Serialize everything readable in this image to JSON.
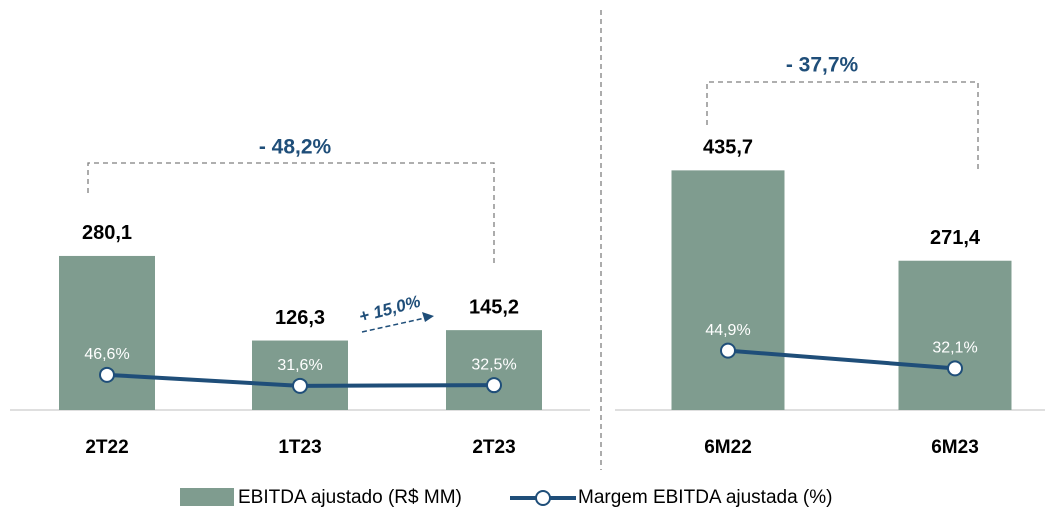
{
  "chart_data": [
    {
      "type": "bar",
      "categories": [
        "2T22",
        "1T23",
        "2T23"
      ],
      "series": [
        {
          "name": "EBITDA ajustado (R$ MM)",
          "color": "#7f9c8f",
          "values": [
            280.1,
            126.3,
            145.2
          ],
          "value_labels": [
            "280,1",
            "126,3",
            "145,2"
          ]
        },
        {
          "name": "Margem EBITDA ajustada (%)",
          "color": "#1f4e79",
          "axis": "y2",
          "values": [
            46.6,
            31.6,
            32.5
          ],
          "value_labels": [
            "46,6%",
            "31,6%",
            "32,5%"
          ]
        }
      ],
      "ylim": [
        0,
        480
      ],
      "y2lim": [
        0,
        360
      ],
      "annotations": [
        "- 48,2%",
        "+ 15,0%"
      ]
    },
    {
      "type": "bar",
      "categories": [
        "6M22",
        "6M23"
      ],
      "series": [
        {
          "color": "#7f9c8f",
          "values": [
            435.7,
            271.4
          ],
          "value_labels": [
            "435,7",
            "271,4"
          ]
        },
        {
          "color": "#1f4e79",
          "axis": "y2",
          "values": [
            44.9,
            32.1
          ],
          "value_labels": [
            "44,9%",
            "32,1%"
          ]
        }
      ],
      "ylim": [
        0,
        480
      ],
      "y2lim": [
        0,
        190
      ],
      "annotations": [
        "- 37,7%"
      ]
    }
  ]
}
